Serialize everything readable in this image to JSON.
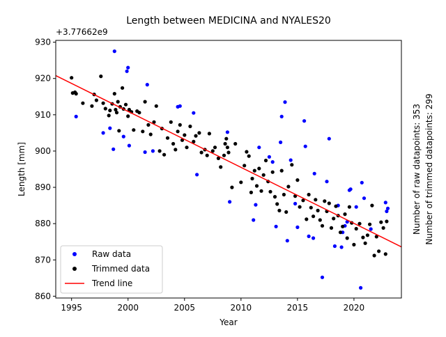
{
  "chart_data": {
    "type": "scatter",
    "title": "Length between MEDICINA and NYALES20",
    "xlabel": "Year",
    "ylabel": "Length [mm]",
    "y_offset_label": "+3.77662e9",
    "side_labels": [
      "Number of raw datapoints: 353",
      "Number of trimmed datapoints: 299"
    ],
    "xlim": [
      1993.6,
      2024.2
    ],
    "ylim": [
      859.5,
      930.5
    ],
    "x_ticks": [
      1995,
      2000,
      2005,
      2010,
      2015,
      2020
    ],
    "y_ticks": [
      860,
      870,
      880,
      890,
      900,
      910,
      920,
      930
    ],
    "grid": false,
    "legend_position": "lower-left",
    "legend": [
      {
        "label": "Raw data",
        "marker": "dot",
        "color": "#0000ff"
      },
      {
        "label": "Trimmed data",
        "marker": "dot",
        "color": "#000000"
      },
      {
        "label": "Trend line",
        "marker": "line",
        "color": "#ff0000"
      }
    ],
    "series": [
      {
        "name": "Raw data",
        "color": "#0000ff",
        "points": [
          [
            1995.4,
            909.5
          ],
          [
            1997.8,
            905.0
          ],
          [
            1998.4,
            906.3
          ],
          [
            1998.7,
            900.5
          ],
          [
            1998.8,
            927.5
          ],
          [
            1999.6,
            904.0
          ],
          [
            1999.9,
            922.0
          ],
          [
            2000.0,
            923.0
          ],
          [
            2000.1,
            901.5
          ],
          [
            2001.5,
            899.7
          ],
          [
            2001.7,
            918.3
          ],
          [
            2002.2,
            900.0
          ],
          [
            2004.4,
            912.2
          ],
          [
            2004.6,
            912.4
          ],
          [
            2005.8,
            910.5
          ],
          [
            2006.1,
            893.5
          ],
          [
            2008.8,
            905.2
          ],
          [
            2009.0,
            886.0
          ],
          [
            2011.1,
            881.0
          ],
          [
            2011.3,
            885.2
          ],
          [
            2011.6,
            901.0
          ],
          [
            2012.5,
            898.4
          ],
          [
            2012.8,
            897.0
          ],
          [
            2013.1,
            879.2
          ],
          [
            2013.5,
            902.4
          ],
          [
            2013.6,
            909.5
          ],
          [
            2013.9,
            913.5
          ],
          [
            2014.1,
            875.3
          ],
          [
            2014.4,
            897.5
          ],
          [
            2014.8,
            885.5
          ],
          [
            2015.0,
            879.0
          ],
          [
            2015.6,
            908.3
          ],
          [
            2015.7,
            901.3
          ],
          [
            2016.0,
            876.5
          ],
          [
            2016.4,
            876.0
          ],
          [
            2016.5,
            893.8
          ],
          [
            2017.2,
            865.2
          ],
          [
            2017.6,
            891.6
          ],
          [
            2017.8,
            903.4
          ],
          [
            2018.3,
            873.8
          ],
          [
            2018.6,
            885.0
          ],
          [
            2018.9,
            873.5
          ],
          [
            2019.0,
            877.6
          ],
          [
            2019.2,
            879.4
          ],
          [
            2019.4,
            880.5
          ],
          [
            2019.6,
            889.2
          ],
          [
            2019.7,
            889.5
          ],
          [
            2020.6,
            862.3
          ],
          [
            2020.7,
            891.3
          ],
          [
            2020.9,
            887.0
          ],
          [
            2022.8,
            885.8
          ],
          [
            2022.9,
            883.4
          ],
          [
            2023.0,
            884.2
          ],
          [
            2021.5,
            878.5
          ],
          [
            2020.2,
            884.6
          ]
        ]
      },
      {
        "name": "Trimmed data",
        "color": "#000000",
        "points": [
          [
            1995.0,
            920.2
          ],
          [
            1995.1,
            916.0
          ],
          [
            1995.3,
            916.2
          ],
          [
            1995.4,
            915.8
          ],
          [
            1996.0,
            913.2
          ],
          [
            1996.8,
            912.4
          ],
          [
            1997.0,
            915.6
          ],
          [
            1997.2,
            914.0
          ],
          [
            1997.6,
            920.6
          ],
          [
            1997.8,
            913.2
          ],
          [
            1998.0,
            911.7
          ],
          [
            1998.3,
            909.8
          ],
          [
            1998.4,
            911.2
          ],
          [
            1998.6,
            913.0
          ],
          [
            1998.8,
            915.8
          ],
          [
            1998.9,
            911.4
          ],
          [
            1999.0,
            910.6
          ],
          [
            1999.1,
            913.6
          ],
          [
            1999.2,
            905.6
          ],
          [
            1999.3,
            912.2
          ],
          [
            1999.5,
            917.4
          ],
          [
            1999.6,
            911.6
          ],
          [
            1999.8,
            912.8
          ],
          [
            2000.0,
            909.6
          ],
          [
            2000.1,
            911.4
          ],
          [
            2000.3,
            910.8
          ],
          [
            2000.5,
            905.8
          ],
          [
            2000.8,
            911.0
          ],
          [
            2001.0,
            910.6
          ],
          [
            2001.3,
            905.4
          ],
          [
            2001.5,
            913.6
          ],
          [
            2001.8,
            907.2
          ],
          [
            2002.0,
            904.6
          ],
          [
            2002.3,
            908.0
          ],
          [
            2002.5,
            912.4
          ],
          [
            2002.8,
            900.0
          ],
          [
            2003.0,
            906.2
          ],
          [
            2003.2,
            899.0
          ],
          [
            2003.5,
            903.6
          ],
          [
            2003.8,
            908.0
          ],
          [
            2004.0,
            902.0
          ],
          [
            2004.2,
            900.4
          ],
          [
            2004.4,
            905.4
          ],
          [
            2004.6,
            907.2
          ],
          [
            2004.8,
            903.0
          ],
          [
            2005.0,
            904.4
          ],
          [
            2005.2,
            901.0
          ],
          [
            2005.5,
            906.8
          ],
          [
            2005.8,
            902.6
          ],
          [
            2006.0,
            904.2
          ],
          [
            2006.3,
            905.0
          ],
          [
            2006.5,
            899.6
          ],
          [
            2006.8,
            900.4
          ],
          [
            2007.0,
            898.8
          ],
          [
            2007.2,
            904.8
          ],
          [
            2007.5,
            900.0
          ],
          [
            2007.7,
            901.0
          ],
          [
            2008.0,
            898.0
          ],
          [
            2008.2,
            895.6
          ],
          [
            2008.5,
            898.8
          ],
          [
            2008.6,
            902.0
          ],
          [
            2008.7,
            903.4
          ],
          [
            2008.8,
            901.0
          ],
          [
            2008.9,
            899.6
          ],
          [
            2009.2,
            890.0
          ],
          [
            2009.5,
            902.0
          ],
          [
            2010.0,
            891.4
          ],
          [
            2010.3,
            896.0
          ],
          [
            2010.5,
            899.8
          ],
          [
            2010.7,
            898.6
          ],
          [
            2010.9,
            888.6
          ],
          [
            2011.0,
            892.4
          ],
          [
            2011.2,
            894.6
          ],
          [
            2011.4,
            890.4
          ],
          [
            2011.6,
            895.2
          ],
          [
            2011.8,
            889.0
          ],
          [
            2012.0,
            893.4
          ],
          [
            2012.2,
            897.4
          ],
          [
            2012.4,
            891.6
          ],
          [
            2012.6,
            888.8
          ],
          [
            2012.8,
            894.2
          ],
          [
            2013.0,
            887.4
          ],
          [
            2013.2,
            885.4
          ],
          [
            2013.4,
            883.6
          ],
          [
            2013.6,
            894.6
          ],
          [
            2013.8,
            888.0
          ],
          [
            2014.0,
            883.2
          ],
          [
            2014.2,
            890.2
          ],
          [
            2014.5,
            896.2
          ],
          [
            2014.8,
            887.6
          ],
          [
            2015.0,
            892.0
          ],
          [
            2015.2,
            884.6
          ],
          [
            2015.5,
            886.4
          ],
          [
            2015.8,
            881.2
          ],
          [
            2016.0,
            888.0
          ],
          [
            2016.2,
            884.4
          ],
          [
            2016.4,
            882.0
          ],
          [
            2016.6,
            886.6
          ],
          [
            2016.8,
            883.6
          ],
          [
            2017.0,
            881.0
          ],
          [
            2017.2,
            879.4
          ],
          [
            2017.4,
            886.2
          ],
          [
            2017.6,
            883.4
          ],
          [
            2017.8,
            885.6
          ],
          [
            2018.0,
            878.8
          ],
          [
            2018.2,
            881.4
          ],
          [
            2018.4,
            884.8
          ],
          [
            2018.6,
            882.2
          ],
          [
            2018.8,
            877.6
          ],
          [
            2019.0,
            879.2
          ],
          [
            2019.2,
            882.6
          ],
          [
            2019.4,
            876.0
          ],
          [
            2019.6,
            884.6
          ],
          [
            2019.8,
            880.2
          ],
          [
            2020.0,
            874.2
          ],
          [
            2020.2,
            878.6
          ],
          [
            2020.5,
            880.0
          ],
          [
            2020.8,
            876.2
          ],
          [
            2021.0,
            874.6
          ],
          [
            2021.2,
            876.8
          ],
          [
            2021.4,
            879.8
          ],
          [
            2021.6,
            885.0
          ],
          [
            2021.8,
            871.2
          ],
          [
            2022.0,
            876.4
          ],
          [
            2022.2,
            872.4
          ],
          [
            2022.4,
            880.4
          ],
          [
            2022.6,
            878.8
          ],
          [
            2022.8,
            871.6
          ],
          [
            2022.9,
            880.6
          ]
        ]
      }
    ],
    "trend_line": {
      "name": "Trend line",
      "color": "#ff0000",
      "x": [
        1993.6,
        2024.2
      ],
      "y": [
        920.8,
        873.6
      ]
    }
  }
}
